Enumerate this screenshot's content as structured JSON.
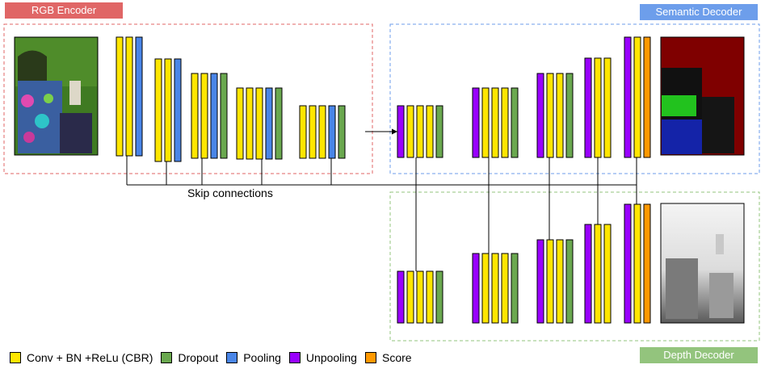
{
  "titles": {
    "encoder": "RGB Encoder",
    "semantic": "Semantic Decoder",
    "depth": "Depth Decoder"
  },
  "skip_label": "Skip connections",
  "colors": {
    "cbr": "#ffe600",
    "dropout": "#6aa84f",
    "pooling": "#4a86e8",
    "unpooling": "#9900ff",
    "score": "#ff9900",
    "encoder_border": "#e06666",
    "semantic_border": "#6d9eeb",
    "depth_border": "#93c47d"
  },
  "legend": [
    {
      "label": "Conv + BN +ReLu (CBR)",
      "type": "cbr",
      "color": "#ffe600"
    },
    {
      "label": "Dropout",
      "type": "dropout",
      "color": "#6aa84f"
    },
    {
      "label": "Pooling",
      "type": "pooling",
      "color": "#4a86e8"
    },
    {
      "label": "Unpooling",
      "type": "unpooling",
      "color": "#9900ff"
    },
    {
      "label": "Score",
      "type": "score",
      "color": "#ff9900"
    }
  ],
  "encoder_stages": [
    [
      "cbr",
      "cbr",
      "pooling"
    ],
    [
      "cbr",
      "cbr",
      "pooling"
    ],
    [
      "cbr",
      "cbr",
      "pooling",
      "dropout"
    ],
    [
      "cbr",
      "cbr",
      "cbr",
      "pooling",
      "dropout"
    ],
    [
      "cbr",
      "cbr",
      "cbr",
      "pooling",
      "dropout"
    ]
  ],
  "decoder_stages": [
    [
      "unpooling",
      "cbr",
      "cbr",
      "cbr",
      "dropout"
    ],
    [
      "unpooling",
      "cbr",
      "cbr",
      "cbr",
      "dropout"
    ],
    [
      "unpooling",
      "cbr",
      "cbr",
      "dropout"
    ],
    [
      "unpooling",
      "cbr",
      "cbr"
    ],
    [
      "unpooling",
      "cbr",
      "score"
    ]
  ],
  "images": {
    "rgb": "rgb-input-image",
    "semantic": "semantic-output-image",
    "depth": "depth-output-image"
  }
}
